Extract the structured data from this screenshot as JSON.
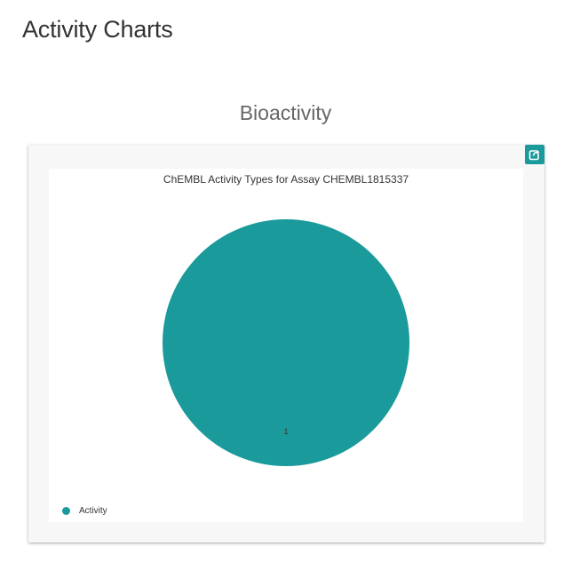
{
  "page": {
    "title": "Activity Charts"
  },
  "section": {
    "title": "Bioactivity"
  },
  "card": {
    "share_icon": "share-icon"
  },
  "chart_data": {
    "type": "pie",
    "title": "ChEMBL Activity Types for Assay CHEMBL1815337",
    "categories": [
      "Activity"
    ],
    "values": [
      1
    ],
    "data_labels": [
      "1"
    ],
    "colors": [
      "#1b9a9c"
    ],
    "legend": "bottom-left"
  }
}
